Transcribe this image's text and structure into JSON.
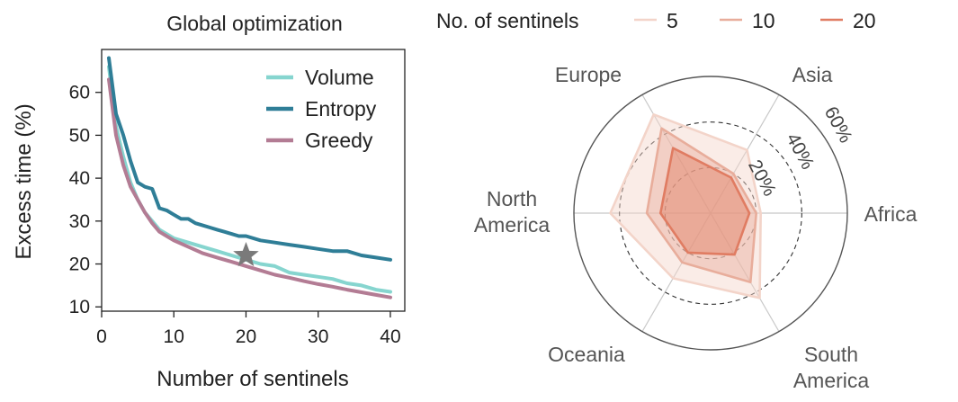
{
  "chart_data": [
    {
      "type": "line",
      "title": "Global optimization",
      "xlabel": "Number of sentinels",
      "ylabel": "Excess time (%)",
      "xlim": [
        0,
        42
      ],
      "ylim": [
        9,
        70
      ],
      "xticks": [
        0,
        10,
        20,
        30,
        40
      ],
      "yticks": [
        10,
        20,
        30,
        40,
        50,
        60
      ],
      "legend_position": "top-right",
      "grid": false,
      "series": [
        {
          "name": "Volume",
          "color": "#86d5cf",
          "x": [
            1,
            2,
            3,
            4,
            5,
            6,
            7,
            8,
            9,
            10,
            12,
            14,
            16,
            18,
            20,
            22,
            24,
            26,
            28,
            30,
            32,
            34,
            36,
            38,
            40
          ],
          "y": [
            66,
            52,
            45,
            39,
            35,
            32,
            30,
            28,
            27,
            26,
            25,
            24,
            23,
            22,
            21,
            20,
            19.5,
            18,
            17.5,
            17,
            16.5,
            15.5,
            15,
            14,
            13.5
          ]
        },
        {
          "name": "Entropy",
          "color": "#2f7e97",
          "x": [
            1,
            2,
            3,
            4,
            5,
            6,
            7,
            8,
            9,
            10,
            11,
            12,
            13,
            14,
            15,
            16,
            17,
            18,
            19,
            20,
            22,
            24,
            26,
            28,
            30,
            32,
            34,
            36,
            38,
            40
          ],
          "y": [
            68,
            55,
            50,
            44,
            39,
            38,
            37.5,
            33,
            32.5,
            31.5,
            30.5,
            30.5,
            29.5,
            29,
            28.5,
            28,
            27.5,
            27,
            26.5,
            26.5,
            25.5,
            25,
            24.5,
            24,
            23.5,
            23,
            23,
            22,
            21.5,
            21
          ]
        },
        {
          "name": "Greedy",
          "color": "#b37c94",
          "x": [
            1,
            2,
            3,
            4,
            5,
            6,
            7,
            8,
            9,
            10,
            12,
            14,
            16,
            18,
            20,
            22,
            24,
            26,
            28,
            30,
            32,
            34,
            36,
            38,
            40
          ],
          "y": [
            63,
            50,
            43,
            38,
            35,
            32,
            29.5,
            27.5,
            26.5,
            25.5,
            24,
            22.5,
            21.5,
            20.5,
            19.5,
            18.5,
            17.5,
            16.8,
            16,
            15.3,
            14.7,
            14,
            13.4,
            12.8,
            12.2
          ]
        }
      ],
      "marker": {
        "name": "star-marker",
        "x": 20,
        "y": 22,
        "color": "#7a7a7a"
      }
    },
    {
      "type": "radar",
      "legend_title": "No. of sentinels",
      "legend_position": "top",
      "categories": [
        "Africa",
        "Asia",
        "Europe",
        "North America",
        "Oceania",
        "South America"
      ],
      "category_lines": [
        "Africa",
        "Asia",
        "Europe",
        "North\nAmerica",
        "Oceania",
        "South\nAmerica"
      ],
      "radial_ticks": [
        "20%",
        "40%",
        "60%"
      ],
      "radial_tick_values": [
        20,
        40,
        60
      ],
      "rmax": 60,
      "series": [
        {
          "name": "5",
          "color": "#f3d4c9",
          "values": [
            22,
            32,
            50,
            44,
            33,
            43
          ]
        },
        {
          "name": "10",
          "color": "#e8ad9b",
          "values": [
            20,
            20,
            43,
            28,
            25,
            35
          ]
        },
        {
          "name": "20",
          "color": "#e07c62",
          "values": [
            17,
            18,
            33,
            22,
            20,
            21
          ]
        }
      ]
    }
  ]
}
